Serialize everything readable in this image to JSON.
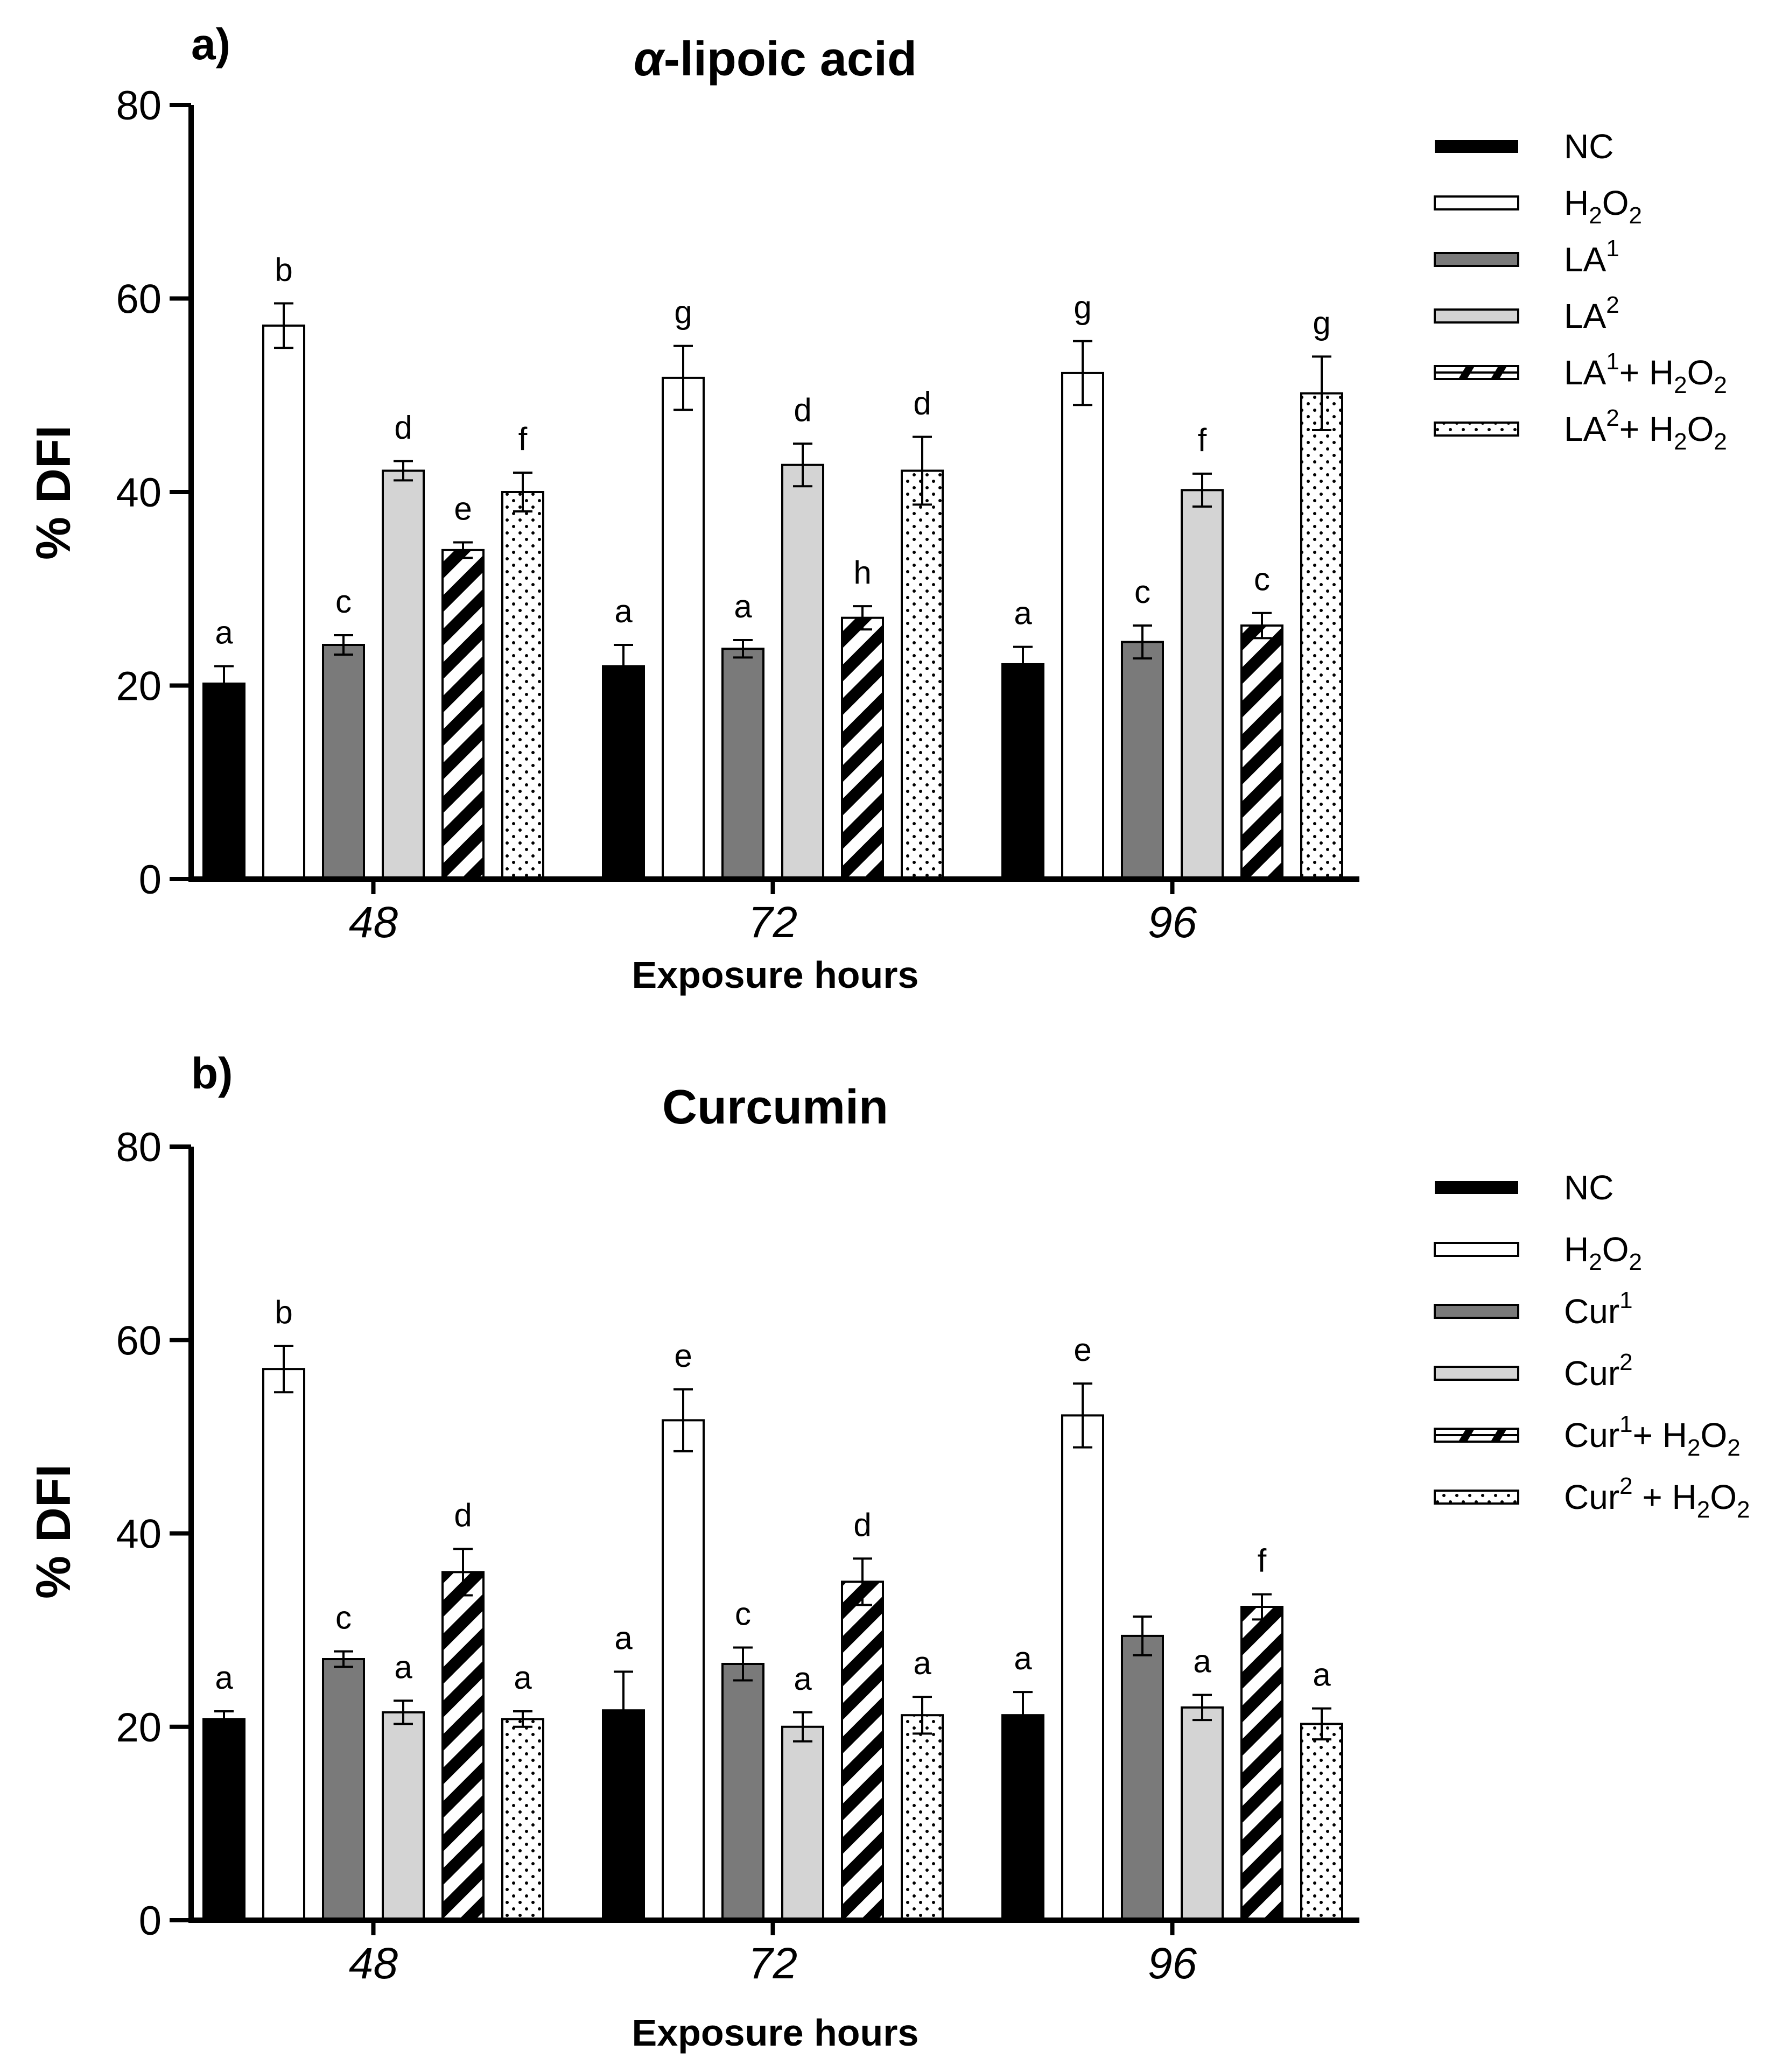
{
  "colors": {
    "NC": "#000000",
    "H2O2": "#ffffff",
    "dose1": "#7a7a7a",
    "dose2": "#d4d4d4",
    "combo1_stripe": "#000000",
    "combo2_dots": "#000000"
  },
  "chart_data": [
    {
      "type": "bar",
      "panel_label": "a)",
      "title": "α-lipoic acid",
      "title_symbol": "α",
      "title_rest": "-lipoic acid",
      "xlabel": "Exposure hours",
      "ylabel": "% DFI",
      "ylim": [
        0,
        80
      ],
      "yticks": [
        0,
        20,
        40,
        60,
        80
      ],
      "categories": [
        "48",
        "72",
        "96"
      ],
      "series": [
        {
          "name": "NC",
          "pattern": "solid-black",
          "values": [
            20.2,
            22.0,
            22.2
          ],
          "errors": [
            1.8,
            2.2,
            1.8
          ],
          "labels": [
            "a",
            "a",
            "a"
          ]
        },
        {
          "name": "H2O2",
          "pattern": "white",
          "values": [
            57.2,
            51.8,
            52.3
          ],
          "errors": [
            2.3,
            3.3,
            3.3
          ],
          "labels": [
            "b",
            "g",
            "g"
          ]
        },
        {
          "name": "LA1",
          "pattern": "dark-gray",
          "values": [
            24.2,
            23.8,
            24.5
          ],
          "errors": [
            1.0,
            0.9,
            1.7
          ],
          "labels": [
            "c",
            "a",
            "c"
          ]
        },
        {
          "name": "LA2",
          "pattern": "light-gray",
          "values": [
            42.2,
            42.8,
            40.2
          ],
          "errors": [
            1.0,
            2.2,
            1.7
          ],
          "labels": [
            "d",
            "d",
            "f"
          ]
        },
        {
          "name": "LA1+ H2O2",
          "pattern": "stripes",
          "values": [
            34.0,
            27.0,
            26.2
          ],
          "errors": [
            0.8,
            1.2,
            1.3
          ],
          "labels": [
            "e",
            "h",
            "c"
          ]
        },
        {
          "name": "LA2+ H2O2",
          "pattern": "dots",
          "values": [
            40.0,
            42.2,
            50.2
          ],
          "errors": [
            2.0,
            3.5,
            3.8
          ],
          "labels": [
            "f",
            "d",
            "g"
          ]
        }
      ],
      "legend": [
        {
          "base": "NC",
          "sup": "",
          "rest": "",
          "pattern": "solid-black"
        },
        {
          "base": "H",
          "sub1": "2",
          "mid": "O",
          "sub2": "2",
          "pattern": "white",
          "formula": true
        },
        {
          "base": "LA",
          "sup": "1",
          "rest": "",
          "pattern": "dark-gray"
        },
        {
          "base": "LA",
          "sup": "2",
          "rest": "",
          "pattern": "light-gray"
        },
        {
          "base": "LA",
          "sup": "1",
          "rest": "+ H",
          "sub1": "2",
          "mid": "O",
          "sub2": "2",
          "pattern": "stripes",
          "combo": true
        },
        {
          "base": "LA",
          "sup": "2",
          "rest": "+ H",
          "sub1": "2",
          "mid": "O",
          "sub2": "2",
          "pattern": "dots",
          "combo": true
        }
      ]
    },
    {
      "type": "bar",
      "panel_label": "b)",
      "title": "Curcumin",
      "xlabel": "Exposure hours",
      "ylabel": "% DFI",
      "ylim": [
        0,
        80
      ],
      "yticks": [
        0,
        20,
        40,
        60,
        80
      ],
      "categories": [
        "48",
        "72",
        "96"
      ],
      "series": [
        {
          "name": "NC",
          "pattern": "solid-black",
          "values": [
            20.8,
            21.7,
            21.2
          ],
          "errors": [
            0.8,
            4.0,
            2.4
          ],
          "labels": [
            "a",
            "a",
            "a"
          ]
        },
        {
          "name": "H2O2",
          "pattern": "white",
          "values": [
            57.0,
            51.7,
            52.2
          ],
          "errors": [
            2.4,
            3.2,
            3.3
          ],
          "labels": [
            "b",
            "e",
            "e"
          ]
        },
        {
          "name": "Cur1",
          "pattern": "dark-gray",
          "values": [
            27.0,
            26.5,
            29.4
          ],
          "errors": [
            0.8,
            1.7,
            2.0
          ],
          "labels": [
            "c",
            "c",
            ""
          ]
        },
        {
          "name": "Cur2",
          "pattern": "light-gray",
          "values": [
            21.5,
            20.0,
            22.0
          ],
          "errors": [
            1.2,
            1.5,
            1.3
          ],
          "labels": [
            "a",
            "a",
            "a"
          ]
        },
        {
          "name": "Cur1+ H2O2",
          "pattern": "stripes",
          "values": [
            36.0,
            35.0,
            32.4
          ],
          "errors": [
            2.4,
            2.4,
            1.3
          ],
          "labels": [
            "d",
            "d",
            "f"
          ]
        },
        {
          "name": "Cur2 + H2O2",
          "pattern": "dots",
          "values": [
            20.8,
            21.2,
            20.3
          ],
          "errors": [
            0.8,
            1.9,
            1.6
          ],
          "labels": [
            "a",
            "a",
            "a"
          ]
        }
      ],
      "legend": [
        {
          "base": "NC",
          "sup": "",
          "rest": "",
          "pattern": "solid-black"
        },
        {
          "base": "H",
          "sub1": "2",
          "mid": "O",
          "sub2": "2",
          "pattern": "white",
          "formula": true
        },
        {
          "base": "Cur",
          "sup": "1",
          "rest": "",
          "pattern": "dark-gray"
        },
        {
          "base": "Cur",
          "sup": "2",
          "rest": "",
          "pattern": "light-gray"
        },
        {
          "base": "Cur",
          "sup": "1",
          "rest": "+ H",
          "sub1": "2",
          "mid": "O",
          "sub2": "2",
          "pattern": "stripes",
          "combo": true
        },
        {
          "base": "Cur",
          "sup": "2",
          "rest": " + H",
          "sub1": "2",
          "mid": "O",
          "sub2": "2",
          "pattern": "dots",
          "combo": true
        }
      ]
    }
  ]
}
